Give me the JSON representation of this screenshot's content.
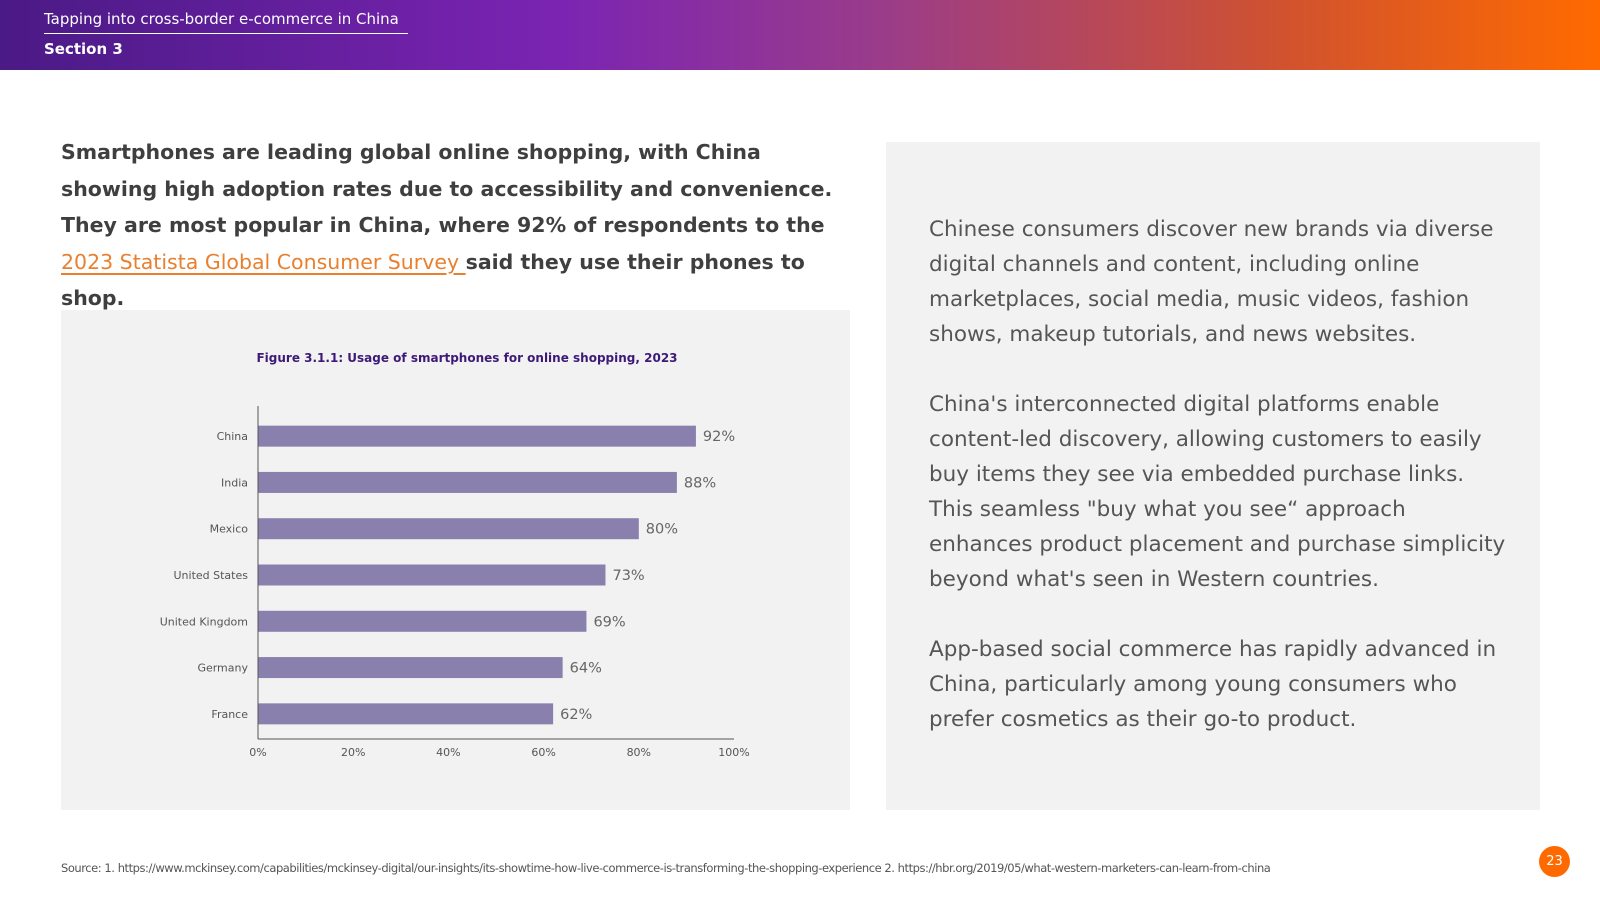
{
  "header": {
    "title": "Tapping into cross-border e-commerce in China",
    "section": "Section 3"
  },
  "intro": {
    "text_before_link": "Smartphones are leading global online shopping, with China showing high adoption rates due to accessibility and convenience. They are most popular in China, where 92% of respondents to the ",
    "link_text": "2023 Statista Global Consumer Survey ",
    "text_after_link": "said they use their phones to shop."
  },
  "chart_data": {
    "type": "bar",
    "orientation": "horizontal",
    "title": "Figure 3.1.1: Usage of smartphones for online shopping, 2023",
    "categories": [
      "China",
      "India",
      "Mexico",
      "United States",
      "United Kingdom",
      "Germany",
      "France"
    ],
    "values": [
      92,
      88,
      80,
      73,
      69,
      64,
      62
    ],
    "value_labels": [
      "92%",
      "88%",
      "80%",
      "73%",
      "69%",
      "64%",
      "62%"
    ],
    "xlim": [
      0,
      100
    ],
    "xticks": [
      0,
      20,
      40,
      60,
      80,
      100
    ],
    "xtick_labels": [
      "0%",
      "20%",
      "40%",
      "60%",
      "80%",
      "100%"
    ],
    "xlabel": "",
    "ylabel": "",
    "grid": false,
    "bar_color": "#8a80ad",
    "title_color": "#3d1a78"
  },
  "right_panel": {
    "paragraphs": [
      "Chinese consumers discover new brands via diverse digital channels and content, including online marketplaces, social media, music videos, fashion shows, makeup tutorials, and news websites.",
      "China's interconnected digital platforms enable content-led discovery, allowing customers to easily buy items they see via embedded purchase links. This seamless \"buy what you see“ approach enhances product placement and purchase simplicity beyond what's seen in Western countries.",
      "App-based social commerce has rapidly advanced in China, particularly among young consumers who prefer cosmetics as their go-to product."
    ]
  },
  "footer": {
    "source": "Source: 1. https://www.mckinsey.com/capabilities/mckinsey-digital/our-insights/its-showtime-how-live-commerce-is-transforming-the-shopping-experience  2. https://hbr.org/2019/05/what-western-marketers-can-learn-from-china",
    "page_number": "23"
  },
  "colors": {
    "accent_orange": "#ff6a00",
    "link_orange": "#e8802f",
    "header_purple": "#4a1a85"
  }
}
